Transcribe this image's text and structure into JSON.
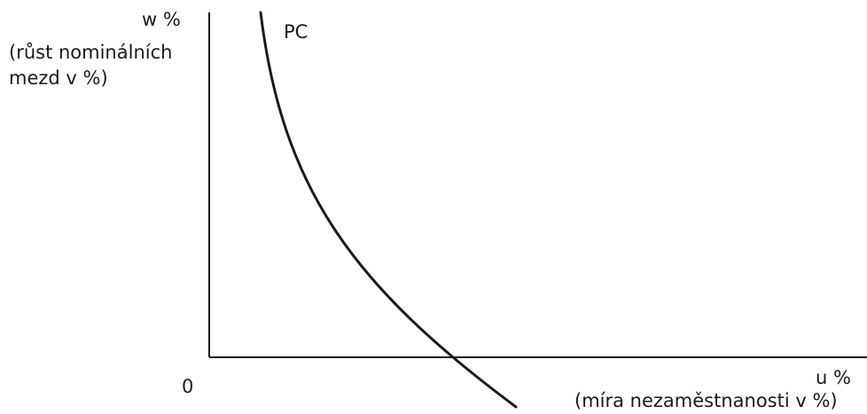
{
  "chart_data": {
    "type": "line",
    "y_axis": {
      "label": "w %",
      "sublabel": "(růst nominálních mezd v %)"
    },
    "x_axis": {
      "label": "u %",
      "sublabel": "(míra nezaměstnanosti v %)"
    },
    "origin_label": "0",
    "series": [
      {
        "name": "PC",
        "color": "#1a1a1a"
      }
    ],
    "grid": false,
    "legend": "none"
  }
}
